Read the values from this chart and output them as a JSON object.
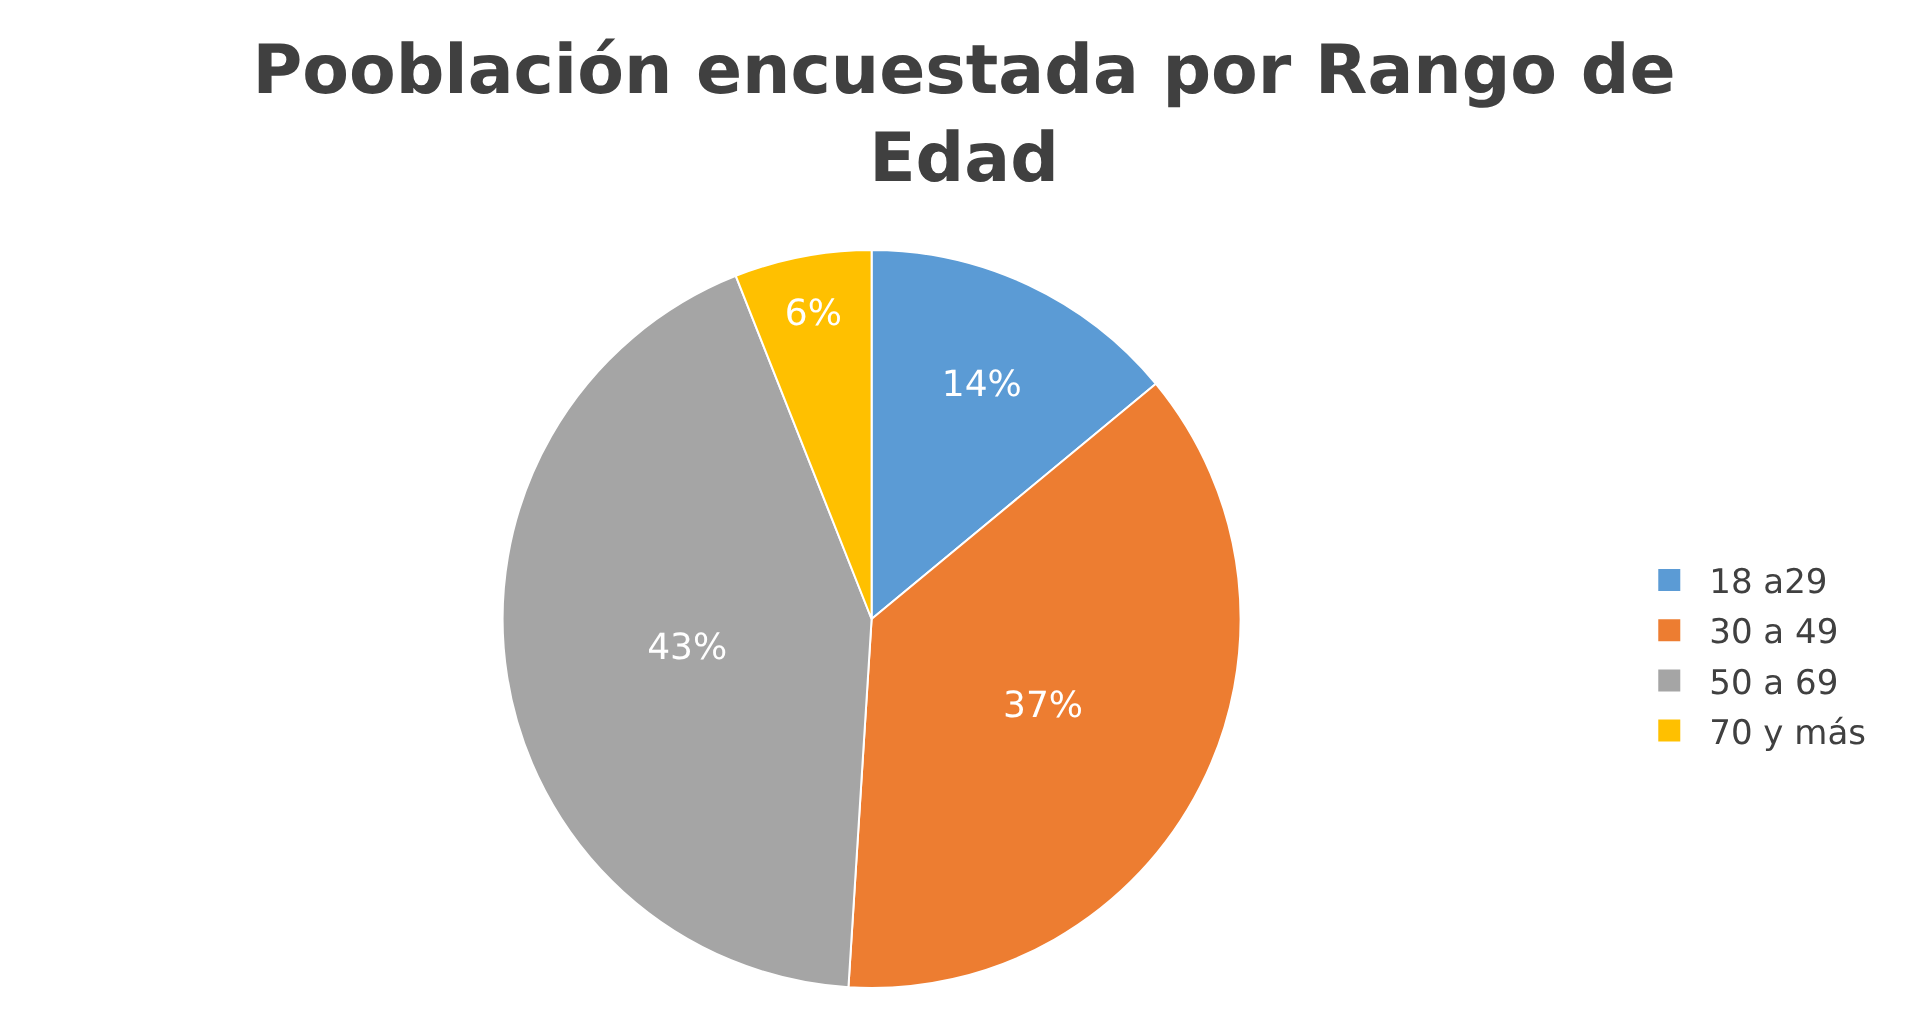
{
  "chart_data": {
    "type": "pie",
    "title": "Pooblación encuestada por Rango de Edad",
    "categories": [
      "18 a29",
      "30 a 49",
      "50 a 69",
      "70 y más"
    ],
    "values": [
      14,
      37,
      43,
      6
    ],
    "value_labels": [
      "14%",
      "37%",
      "43%",
      "6%"
    ],
    "colors": [
      "#5b9bd5",
      "#ed7d31",
      "#a5a5a5",
      "#ffc000"
    ],
    "legend": "right"
  }
}
